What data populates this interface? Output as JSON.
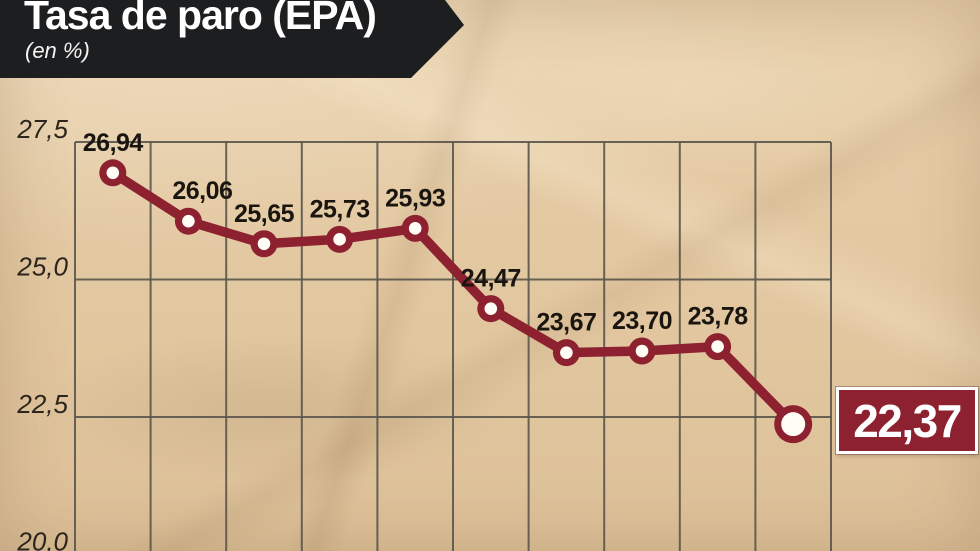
{
  "banner": {
    "title": "Tasa de paro (EPA)",
    "subtitle": "(en %)"
  },
  "chart_data": {
    "type": "line",
    "title": "Tasa de paro (EPA)",
    "unit_label": "(en %)",
    "values": [
      26.94,
      26.06,
      25.65,
      25.73,
      25.93,
      24.47,
      23.67,
      23.7,
      23.78,
      22.37
    ],
    "point_labels": [
      "26,94",
      "26,06",
      "25,65",
      "25,73",
      "25,93",
      "24,47",
      "23,67",
      "23,70",
      "23,78",
      "22,37"
    ],
    "highlight_index": 9,
    "highlight_label": "22,37",
    "y_ticks": [
      {
        "label": "27,5",
        "value": 27.5
      },
      {
        "label": "25,0",
        "value": 25.0
      },
      {
        "label": "22,5",
        "value": 22.5
      },
      {
        "label": "20,0",
        "value": 20.0
      }
    ],
    "ylim": [
      20.0,
      27.5
    ],
    "grid": true,
    "legend": false,
    "colors": {
      "line": "#8d2130",
      "marker_fill": "#fffdf6",
      "grid": "#5a564c",
      "label_text": "#1a150f",
      "tick_text": "#2b251c",
      "highlight_bg": "#8d2130",
      "highlight_border": "#ffffff",
      "highlight_text": "#ffffff",
      "banner_bg": "#1d1e20",
      "banner_text": "#ffffff",
      "paper": "#e2c7a0"
    }
  }
}
